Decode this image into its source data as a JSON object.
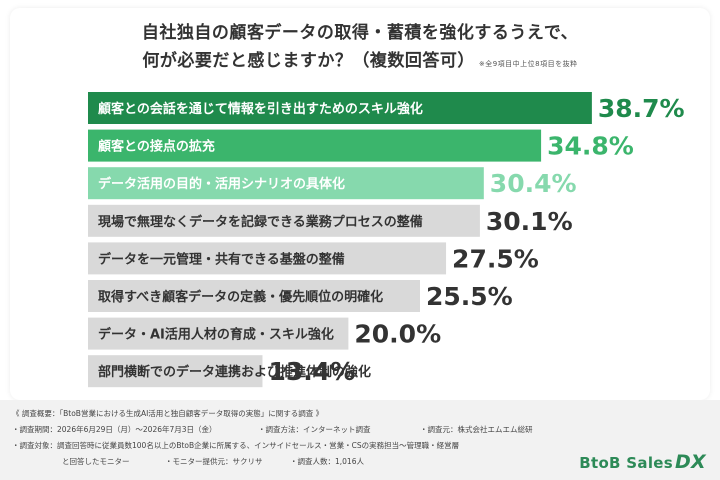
{
  "title": {
    "line1": "自社独自の顧客データの取得・蓄積を強化するうえで、",
    "line2": "何が必要だと感じますか？（複数回答可）",
    "note": "※全9項目中上位8項目を抜粋"
  },
  "chart_data": {
    "type": "bar",
    "orientation": "horizontal",
    "categories": [
      "顧客との会話を通じて情報を引き出すためのスキル強化",
      "顧客との接点の拡充",
      "データ活用の目的・活用シナリオの具体化",
      "現場で無理なくデータを記録できる業務プロセスの整備",
      "データを一元管理・共有できる基盤の整備",
      "取得すべき顧客データの定義・優先順位の明確化",
      "データ・AI活用人材の育成・スキル強化",
      "部門横断でのデータ連携および推進体制の強化"
    ],
    "values": [
      38.7,
      34.8,
      30.4,
      30.1,
      27.5,
      25.5,
      20.0,
      13.4
    ],
    "value_labels": [
      "38.7%",
      "34.8%",
      "30.4%",
      "30.1%",
      "27.5%",
      "25.5%",
      "20.0%",
      "13.4%"
    ],
    "bar_colors": [
      "#1f8a4c",
      "#3bb56c",
      "#86d9ad",
      "#d9d9d9",
      "#d9d9d9",
      "#d9d9d9",
      "#d9d9d9",
      "#d9d9d9"
    ],
    "label_colors": [
      "#ffffff",
      "#ffffff",
      "#ffffff",
      "#333333",
      "#333333",
      "#333333",
      "#333333",
      "#333333"
    ],
    "value_colors": [
      "#1f8a4c",
      "#3bb56c",
      "#86d9ad",
      "#333333",
      "#333333",
      "#333333",
      "#333333",
      "#333333"
    ],
    "sample_note": "(n=1,016人)"
  },
  "footer": {
    "survey_title": "《 調査概要：「BtoB営業における生成AI活用と独自顧客データ取得の実態」に関する調査 》",
    "period": "・調査期間：2026年6月29日（月）〜2026年7月3日（金）",
    "method": "・調査方法：インターネット調査",
    "organizer": "・調査元：株式会社エムエム総研",
    "target_line1": "・調査対象：調査回答時に従業員数100名以上のBtoB企業に所属する、インサイドセールス・営業・CSの実務担当〜管理職・経営層",
    "target_line2": "と回答したモニター",
    "provider": "・モニター提供元：サクリサ",
    "respondents": "・調査人数：1,016人"
  },
  "logo": {
    "text": "BtoB Sales",
    "mark": "DX"
  }
}
